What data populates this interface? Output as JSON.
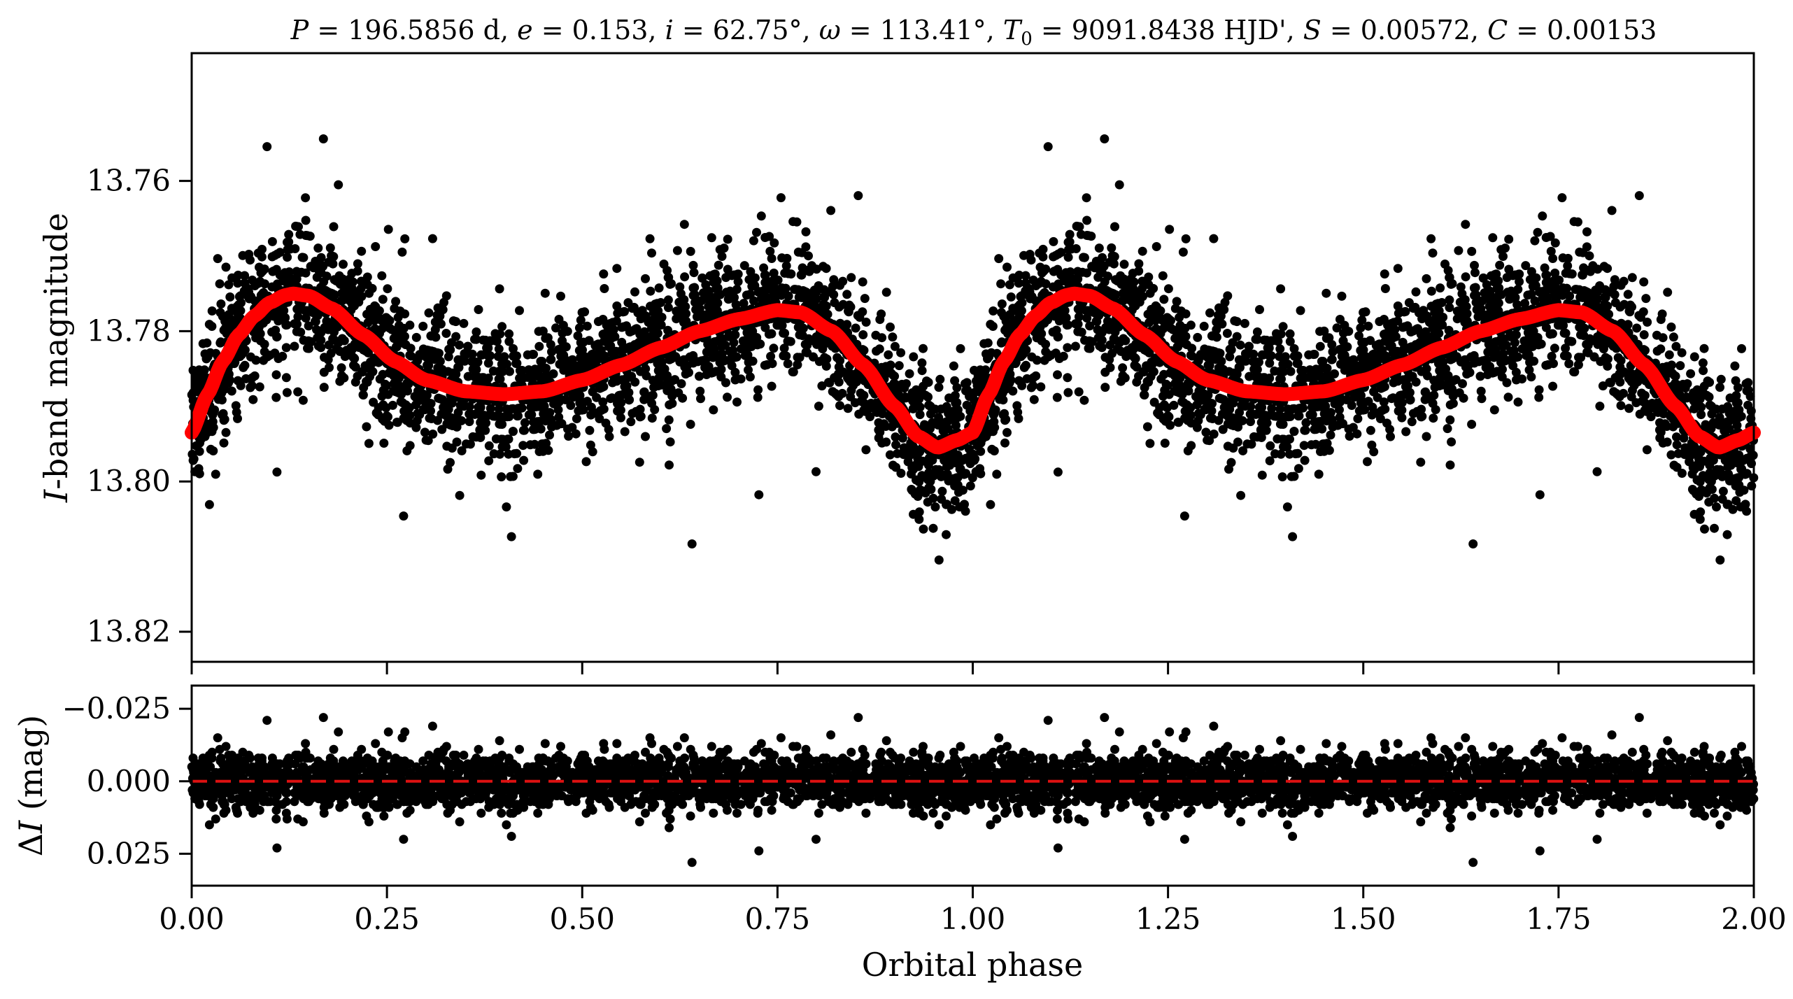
{
  "title": "P = 196.5856 d, e = 0.153, i = 62.75°, ω = 113.41°, T0 = 9091.8438 HJD', S = 0.00572, C = 0.00153",
  "title_parts": {
    "p_label": "P",
    "p_value": " = 196.5856 d, ",
    "e_label": "e",
    "e_value": " = 0.153, ",
    "i_label": "i",
    "i_value": " = 62.75°, ",
    "w_label": "ω",
    "w_value": " = 113.41°, ",
    "t0_label": "T",
    "t0_sub": "0",
    "t0_value": " = 9091.8438 HJD', ",
    "s_label": "S",
    "s_value": " = 0.00572, ",
    "c_label": "C",
    "c_value": " = 0.00153"
  },
  "colors": {
    "points": "#000000",
    "model": "#ff0000",
    "zero_line": "#dd1111"
  },
  "chart_data": [
    {
      "type": "scatter",
      "panel": "top",
      "ylabel_italic": "I",
      "ylabel_rest": "-band magnitude",
      "xlabel": "",
      "xlim": [
        0,
        2
      ],
      "ylim": [
        13.824,
        13.743
      ],
      "inverted_y": true,
      "yticks": [
        13.76,
        13.78,
        13.8,
        13.82
      ],
      "ytick_labels": [
        "13.76",
        "13.78",
        "13.80",
        "13.82"
      ],
      "series": [
        {
          "kind": "points",
          "description_phase_values": "phase 0 to 1 repeated over 1 to 2"
        },
        {
          "kind": "model_line",
          "x": [
            0.0,
            0.02,
            0.04,
            0.06,
            0.08,
            0.1,
            0.12,
            0.13,
            0.15,
            0.18,
            0.22,
            0.26,
            0.3,
            0.35,
            0.4,
            0.45,
            0.5,
            0.55,
            0.6,
            0.65,
            0.7,
            0.75,
            0.78,
            0.82,
            0.86,
            0.9,
            0.93,
            0.955,
            0.98,
            1.0
          ],
          "y": [
            13.7935,
            13.7885,
            13.784,
            13.7805,
            13.778,
            13.7762,
            13.7752,
            13.775,
            13.7753,
            13.777,
            13.7805,
            13.784,
            13.7865,
            13.788,
            13.7884,
            13.788,
            13.7865,
            13.7845,
            13.7822,
            13.78,
            13.7784,
            13.7772,
            13.7775,
            13.78,
            13.7845,
            13.79,
            13.794,
            13.7955,
            13.7945,
            13.7935
          ]
        }
      ]
    },
    {
      "type": "scatter",
      "panel": "bottom",
      "ylabel_delta": "Δ",
      "ylabel_italic": "I",
      "ylabel_rest": " (mag)",
      "xlabel": "Orbital phase",
      "xlim": [
        0,
        2
      ],
      "ylim": [
        0.036,
        -0.033
      ],
      "inverted_y": true,
      "yticks": [
        -0.025,
        0.0,
        0.025
      ],
      "ytick_labels": [
        "−0.025",
        "0.000",
        "0.025"
      ],
      "xticks": [
        0.0,
        0.25,
        0.5,
        0.75,
        1.0,
        1.25,
        1.5,
        1.75,
        2.0
      ],
      "xtick_labels": [
        "0.00",
        "0.25",
        "0.50",
        "0.75",
        "1.00",
        "1.25",
        "1.50",
        "1.75",
        "2.00"
      ],
      "series": [
        {
          "kind": "points"
        },
        {
          "kind": "zero_line",
          "y": 0.0
        }
      ]
    }
  ]
}
